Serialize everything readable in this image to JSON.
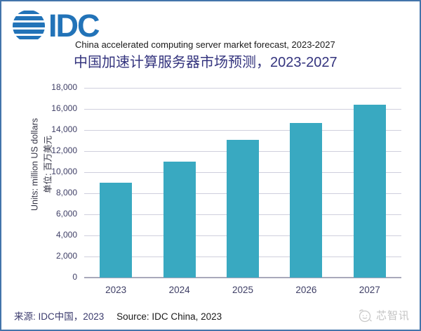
{
  "logo": {
    "brand": "IDC",
    "brand_color": "#2273b8",
    "globe_icon": "idc-striped-globe"
  },
  "header": {
    "title_en": "China accelerated computing server market forecast, 2023-2027",
    "title_zh": "中国加速计算服务器市场预测，2023-2027",
    "title_zh_color": "#34347e"
  },
  "chart_data": {
    "type": "bar",
    "title": "China accelerated computing server market forecast, 2023-2027",
    "title_zh": "中国加速计算服务器市场预测，2023-2027",
    "categories": [
      "2023",
      "2024",
      "2025",
      "2026",
      "2027"
    ],
    "values": [
      9000,
      11000,
      13100,
      14700,
      16400
    ],
    "unit_label_en": "Units: million US dollars",
    "unit_label_zh": "单位: 百万美元",
    "xlabel": "",
    "ylabel": "Units: million US dollars / 单位: 百万美元",
    "ylim": [
      0,
      18000
    ],
    "ytick_step": 2000,
    "grid": true,
    "legend_position": "none",
    "bar_color": "#39a9c1",
    "gridline_color": "#cfcfdd",
    "axis_line_color": "#a9a9bb",
    "tick_label_color": "#3f3f66"
  },
  "footer": {
    "source_zh": "来源: IDC中国，2023",
    "source_en": "Source: IDC China, 2023"
  },
  "watermark": {
    "label": "芯智讯",
    "icon": "xinzhixun-chick-logo",
    "color": "#c3c3c3"
  }
}
